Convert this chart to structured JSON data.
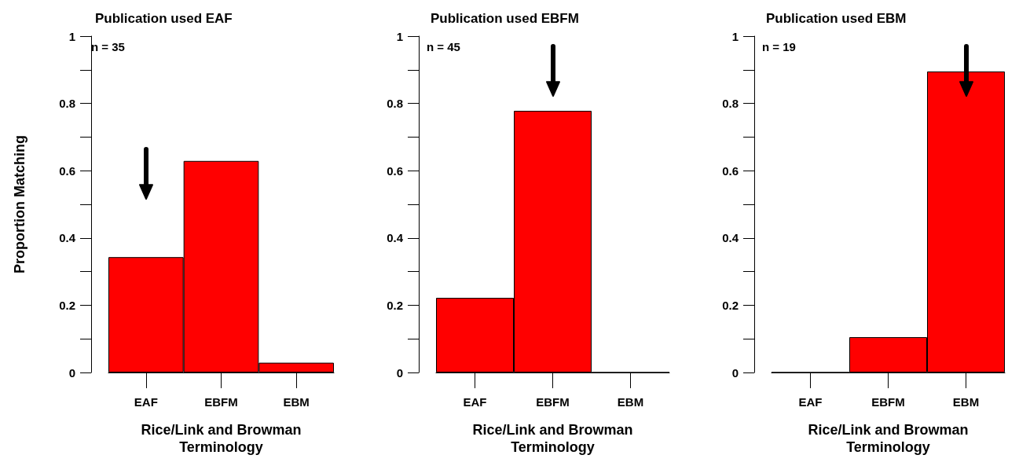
{
  "chart_data": [
    {
      "type": "bar",
      "title": "Publication used EAF",
      "annotations": [
        "n = 35"
      ],
      "xlabel": "Rice/Link and Browman Terminology",
      "ylabel": "Proportion Matching",
      "categories": [
        "EAF",
        "EBFM",
        "EBM"
      ],
      "values": [
        0.343,
        0.629,
        0.029
      ],
      "color": "#ff0000",
      "ylim": [
        0,
        1
      ],
      "yticks": [
        0,
        0.2,
        0.4,
        0.6,
        0.8,
        1
      ],
      "grid": false
    },
    {
      "type": "bar",
      "title": "Publication used EBFM",
      "annotations": [
        "n = 45"
      ],
      "xlabel": "Rice/Link and Browman Terminology",
      "categories": [
        "EAF",
        "EBFM",
        "EBM"
      ],
      "values": [
        0.222,
        0.778,
        0
      ],
      "color": "#ff0000",
      "ylim": [
        0,
        1
      ],
      "yticks": [
        0,
        0.2,
        0.4,
        0.6,
        0.8,
        1
      ],
      "grid": false
    },
    {
      "type": "bar",
      "title": "Publication used EBM",
      "annotations": [
        "n = 19"
      ],
      "xlabel": "Rice/Link and Browman Terminology",
      "categories": [
        "EAF",
        "EBFM",
        "EBM"
      ],
      "values": [
        0,
        0.105,
        0.895
      ],
      "color": "#ff0000",
      "ylim": [
        0,
        1
      ],
      "yticks": [
        0,
        0.2,
        0.4,
        0.6,
        0.8,
        1
      ],
      "grid": false
    }
  ]
}
